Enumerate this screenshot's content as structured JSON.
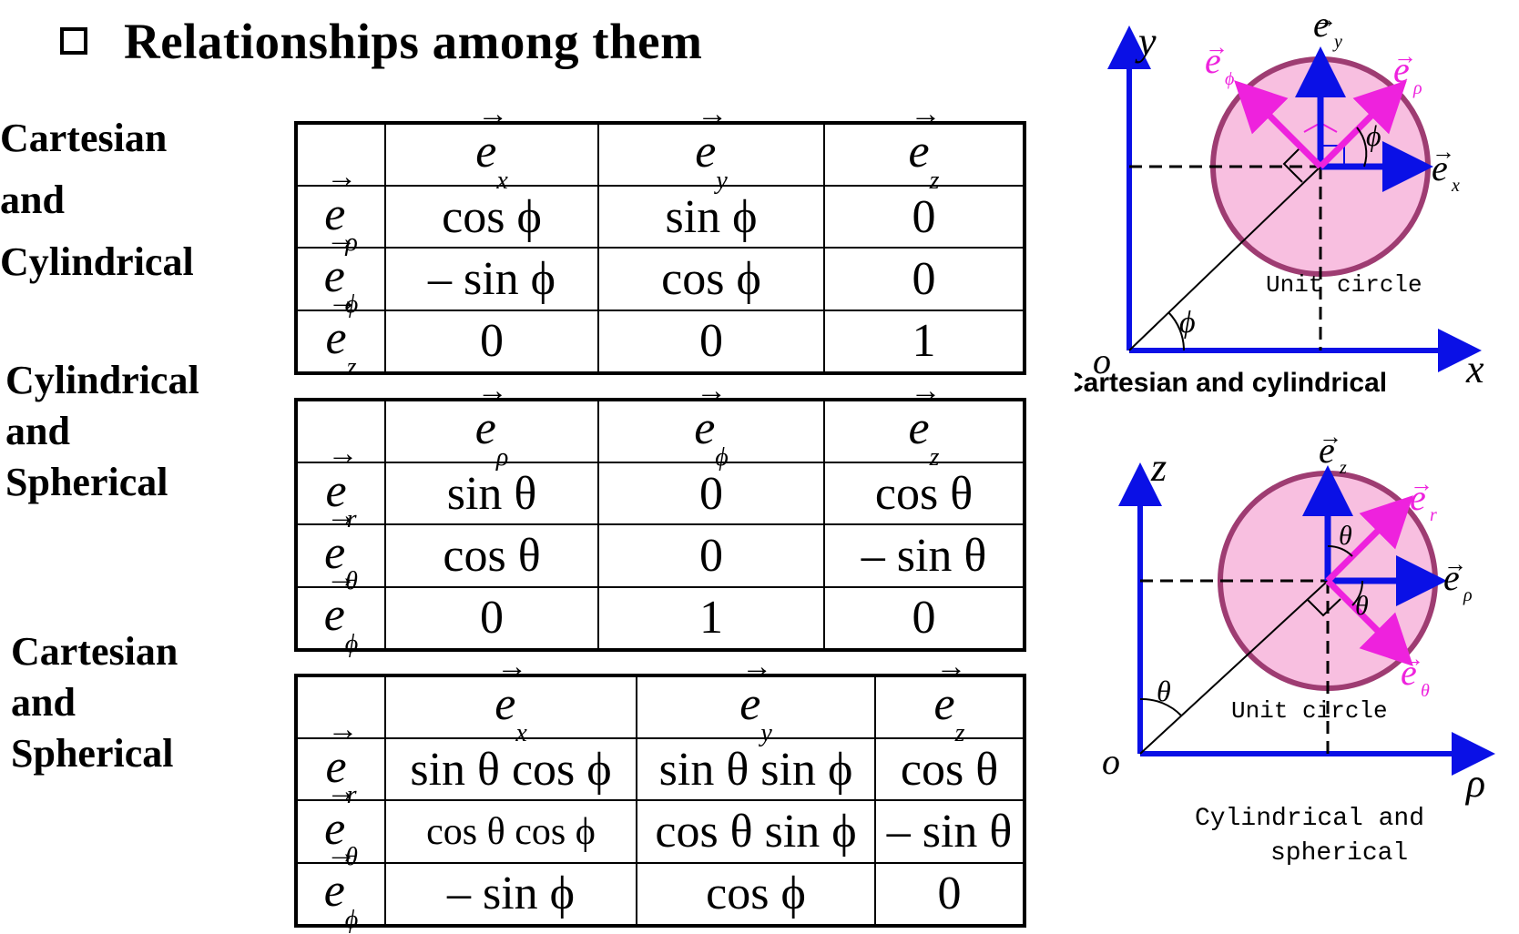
{
  "heading": "Relationships among them",
  "tables": [
    {
      "side_label": [
        "Cartesian",
        "and",
        "Cylindrical"
      ],
      "columns": [
        "x",
        "y",
        "z"
      ],
      "rows": [
        {
          "basis": "ρ",
          "cells": [
            "cos ϕ",
            "sin ϕ",
            "0"
          ]
        },
        {
          "basis": "ϕ",
          "cells": [
            "– sin ϕ",
            "cos ϕ",
            "0"
          ]
        },
        {
          "basis": "z",
          "cells": [
            "0",
            "0",
            "1"
          ]
        }
      ]
    },
    {
      "side_label": [
        "Cylindrical",
        "and",
        "Spherical"
      ],
      "columns": [
        "ρ",
        "ϕ",
        "z"
      ],
      "rows": [
        {
          "basis": "r",
          "cells": [
            "sin θ",
            "0",
            "cos θ"
          ]
        },
        {
          "basis": "θ",
          "cells": [
            "cos θ",
            "0",
            "– sin θ"
          ]
        },
        {
          "basis": "ϕ",
          "cells": [
            "0",
            "1",
            "0"
          ]
        }
      ]
    },
    {
      "side_label": [
        "Cartesian",
        "and",
        "Spherical"
      ],
      "columns": [
        "x",
        "y",
        "z"
      ],
      "rows": [
        {
          "basis": "r",
          "cells": [
            "sin θ cos ϕ",
            "sin θ sin ϕ",
            "cos θ"
          ]
        },
        {
          "basis": "θ",
          "cells": [
            "cos θ cos ϕ",
            "cos θ sin ϕ",
            "– sin θ"
          ]
        },
        {
          "basis": "ϕ",
          "cells": [
            "– sin ϕ",
            "cos ϕ",
            "0"
          ]
        }
      ]
    }
  ],
  "diagrams": {
    "top": {
      "axis_y": "y",
      "axis_x": "x",
      "origin": "o",
      "angle": "ϕ",
      "angle_small": "ϕ",
      "e": "e",
      "sub_y": "y",
      "sub_x": "x",
      "sub_phi": "ϕ",
      "sub_rho": "ρ",
      "unit_circle": "Unit circle",
      "caption": "Cartesian and cylindrical"
    },
    "bottom": {
      "axis_z": "z",
      "axis_rho": "ρ",
      "origin": "o",
      "angle": "θ",
      "angle_small_1": "θ",
      "angle_small_2": "θ",
      "e": "e",
      "sub_z": "z",
      "sub_r": "r",
      "sub_rho": "ρ",
      "sub_theta": "θ",
      "unit_circle": "Unit circle",
      "caption_line1": "Cylindrical and",
      "caption_line2": "spherical"
    }
  },
  "colors": {
    "axis_blue": "#0a10e6",
    "vector_magenta": "#ee22dd",
    "circle_fill": "#f8bfe0",
    "circle_stroke": "#9e3c72"
  }
}
